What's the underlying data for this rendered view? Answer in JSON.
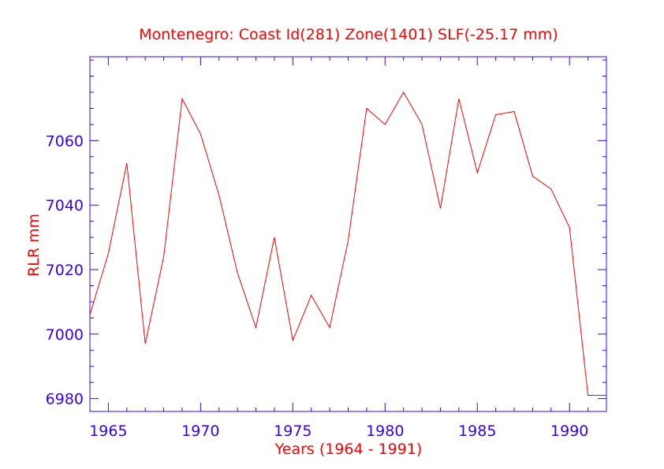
{
  "chart_data": {
    "type": "line",
    "title": "Montenegro:  Coast Id(281) Zone(1401) SLF(-25.17 mm)",
    "xlabel": "Years (1964 - 1991)",
    "ylabel": "RLR mm",
    "xlim": [
      1964,
      1992
    ],
    "ylim": [
      6976,
      7086
    ],
    "x_ticks": [
      1965,
      1970,
      1975,
      1980,
      1985,
      1990
    ],
    "y_ticks": [
      6980,
      7000,
      7020,
      7040,
      7060
    ],
    "grid": false,
    "series": [
      {
        "color": "#ff0000",
        "x": [
          1964,
          1965,
          1966,
          1967,
          1968,
          1969,
          1970,
          1971,
          1972,
          1973,
          1974,
          1975,
          1976,
          1977,
          1978,
          1979,
          1980,
          1981,
          1982,
          1983,
          1984,
          1985,
          1986,
          1987,
          1988,
          1989,
          1990,
          1991,
          1992
        ],
        "y": [
          7006,
          7025,
          7053,
          6997,
          7024,
          7073,
          7062,
          7043,
          7019,
          7002,
          7030,
          6998,
          7012,
          7002,
          7029,
          7070,
          7065,
          7075,
          7065,
          7039,
          7073,
          7050,
          7068,
          7069,
          7049,
          7045,
          7033,
          6981,
          6981
        ]
      }
    ]
  },
  "colors": {
    "axis": "#3300ff",
    "title": "#ff0000",
    "line": "#ff0000"
  }
}
